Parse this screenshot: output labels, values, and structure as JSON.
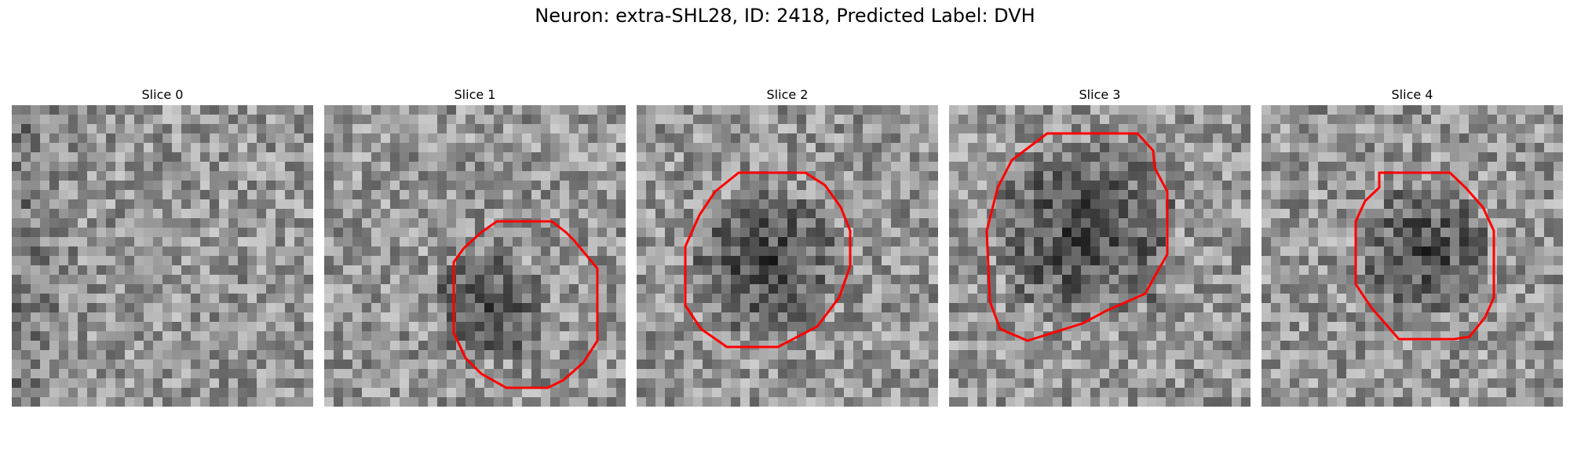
{
  "figure": {
    "title": "Neuron: extra-SHL28, ID: 2418, Predicted Label: DVH"
  },
  "colors": {
    "roi_outline": "#ff0000",
    "background": "#ffffff"
  },
  "panels": [
    {
      "title": "Slice 0",
      "has_roi": false
    },
    {
      "title": "Slice 1",
      "has_roi": true
    },
    {
      "title": "Slice 2",
      "has_roi": true
    },
    {
      "title": "Slice 3",
      "has_roi": true
    },
    {
      "title": "Slice 4",
      "has_roi": true
    }
  ]
}
